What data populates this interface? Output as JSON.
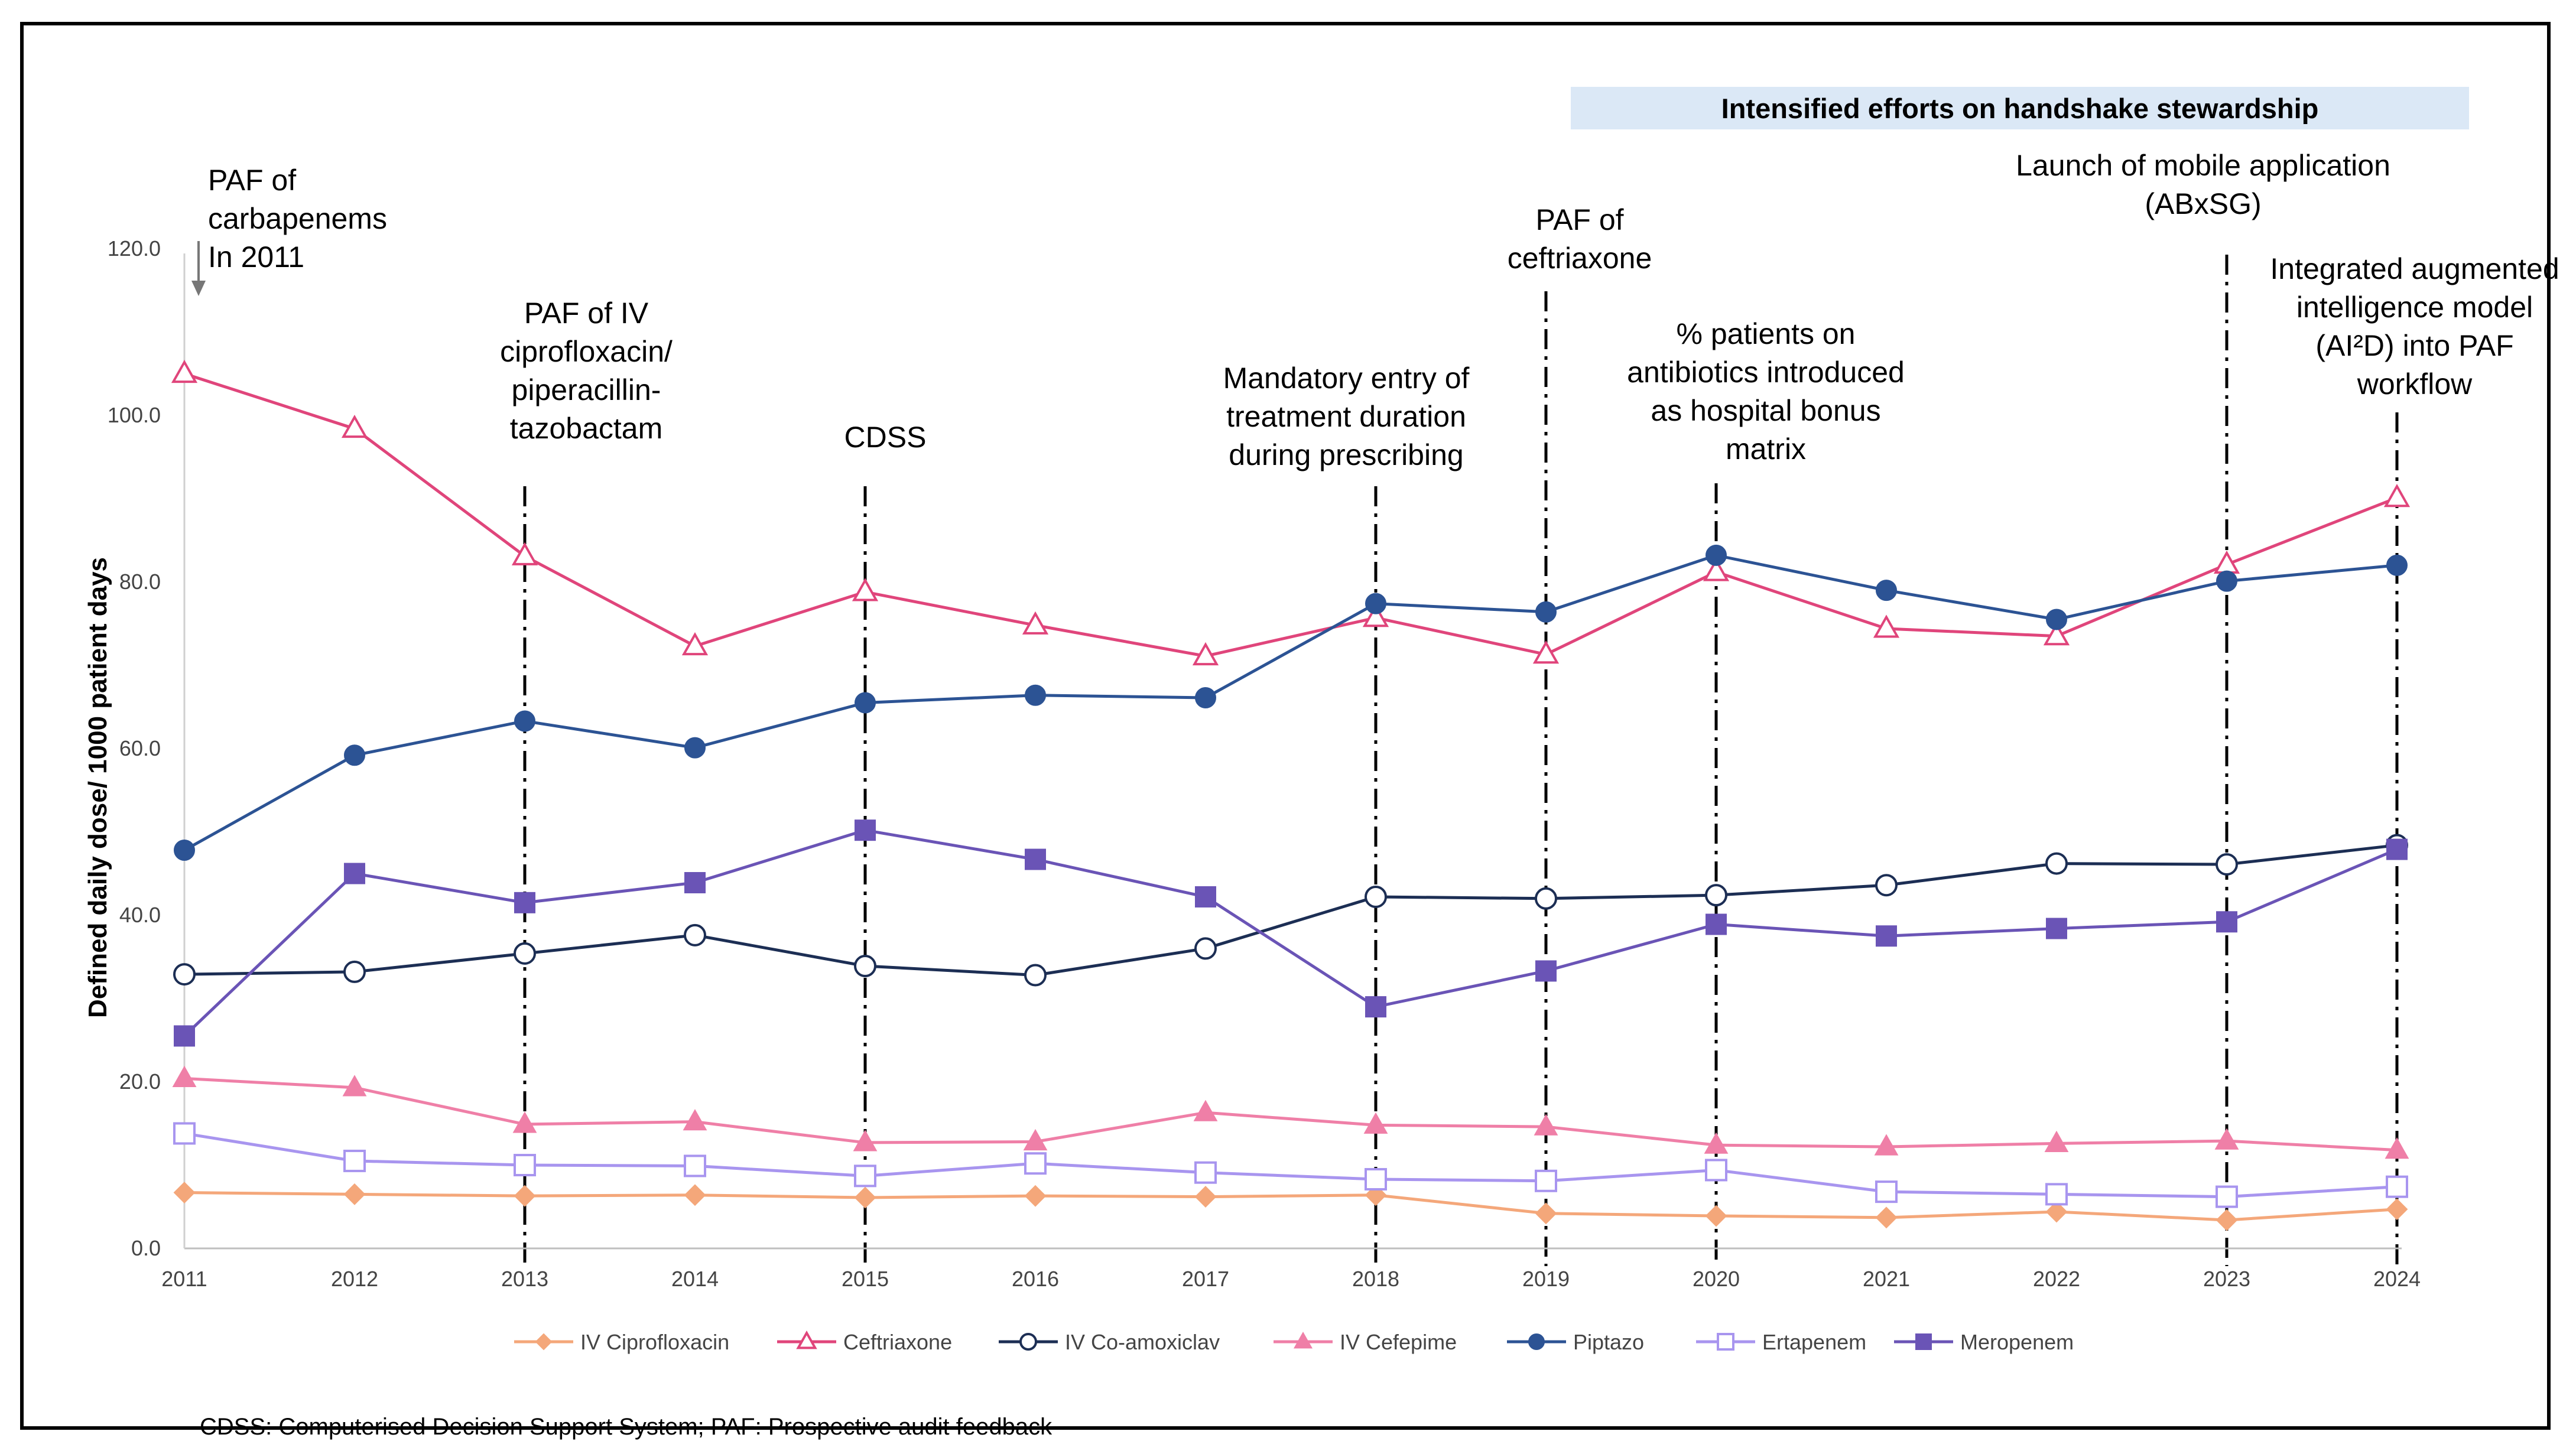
{
  "banner": "Intensified efforts on handshake stewardship",
  "y_axis_label": "Defined daily dose/ 1000 patient days",
  "footnote": "CDSS: Computerised Decision Support System; PAF: Prospective audit feedback",
  "annotations": [
    {
      "id": "paf-carbapenems",
      "lines": [
        "PAF of",
        "carbapenems",
        "In 2011"
      ]
    },
    {
      "id": "paf-iv-cipro",
      "lines": [
        "PAF of IV",
        "ciprofloxacin/",
        "piperacillin-",
        "tazobactam"
      ]
    },
    {
      "id": "cdss",
      "lines": [
        "CDSS"
      ]
    },
    {
      "id": "mandatory-entry",
      "lines": [
        "Mandatory entry of",
        "treatment duration",
        "during prescribing"
      ]
    },
    {
      "id": "paf-ceftriaxone",
      "lines": [
        "PAF of",
        "ceftriaxone"
      ]
    },
    {
      "id": "bonus-matrix",
      "lines": [
        "% patients on",
        "antibiotics introduced",
        "as hospital bonus",
        "matrix"
      ]
    },
    {
      "id": "mobile-app",
      "lines": [
        "Launch of mobile application",
        "(ABxSG)"
      ]
    },
    {
      "id": "ai2d",
      "lines": [
        "Integrated augmented",
        "intelligence model",
        "(AI²D) into PAF",
        "workflow"
      ]
    }
  ],
  "chart_data": {
    "type": "line",
    "title": "",
    "xlabel": "",
    "ylabel": "Defined daily dose/ 1000 patient days",
    "x": [
      2011,
      2012,
      2013,
      2014,
      2015,
      2016,
      2017,
      2018,
      2019,
      2020,
      2021,
      2022,
      2023,
      2024
    ],
    "x_tick_labels": [
      "2011",
      "2012",
      "2013",
      "2014",
      "2015",
      "2016",
      "2017",
      "2018",
      "2019",
      "2020",
      "2021",
      "2022",
      "2023",
      "2024"
    ],
    "ylim": [
      0,
      120
    ],
    "y_ticks": [
      0,
      20,
      40,
      60,
      80,
      100,
      120
    ],
    "y_tick_labels": [
      "0.0",
      "20.0",
      "40.0",
      "60.0",
      "80.0",
      "100.0",
      "120.0"
    ],
    "intervention_years": [
      2013,
      2015,
      2018,
      2019,
      2020,
      2023,
      2024
    ],
    "legend_position": "bottom",
    "series": [
      {
        "name": "IV Ciprofloxacin",
        "color": "#f4a77a",
        "marker": "diamond-filled",
        "values": [
          6.7,
          6.5,
          6.3,
          6.4,
          6.1,
          6.3,
          6.2,
          6.4,
          4.2,
          3.9,
          3.7,
          4.4,
          3.4,
          4.7
        ]
      },
      {
        "name": "Ceftriaxone",
        "color": "#e0457b",
        "marker": "triangle-open",
        "values": [
          105,
          98.4,
          83.1,
          72.3,
          78.8,
          74.8,
          71.1,
          75.7,
          71.3,
          81.2,
          74.4,
          73.5,
          82.1,
          90.1
        ]
      },
      {
        "name": "IV Co-amoxiclav",
        "color": "#1c2e54",
        "marker": "circle-open",
        "values": [
          32.9,
          33.2,
          35.4,
          37.6,
          33.9,
          32.8,
          36.0,
          42.2,
          42.0,
          42.4,
          43.6,
          46.2,
          46.1,
          48.4
        ]
      },
      {
        "name": "IV Cefepime",
        "color": "#ef7fa7",
        "marker": "triangle-filled",
        "values": [
          20.4,
          19.3,
          14.9,
          15.2,
          12.7,
          12.8,
          16.3,
          14.8,
          14.6,
          12.4,
          12.2,
          12.6,
          12.9,
          11.8
        ]
      },
      {
        "name": "Piptazo",
        "color": "#2c5394",
        "marker": "circle-filled",
        "values": [
          47.8,
          59.2,
          63.3,
          60.1,
          65.5,
          66.4,
          66.1,
          77.4,
          76.4,
          83.2,
          79.0,
          75.5,
          80.1,
          82.0
        ]
      },
      {
        "name": "Ertapenem",
        "color": "#a895ef",
        "marker": "square-open",
        "values": [
          13.8,
          10.5,
          10.0,
          9.9,
          8.7,
          10.2,
          9.1,
          8.3,
          8.1,
          9.4,
          6.8,
          6.5,
          6.2,
          7.4
        ]
      },
      {
        "name": "Meropenem",
        "color": "#6a54b6",
        "marker": "square-filled",
        "values": [
          25.5,
          45.0,
          41.5,
          43.9,
          50.2,
          46.7,
          42.2,
          29.0,
          33.3,
          38.9,
          37.5,
          38.4,
          39.2,
          47.9
        ]
      }
    ]
  }
}
